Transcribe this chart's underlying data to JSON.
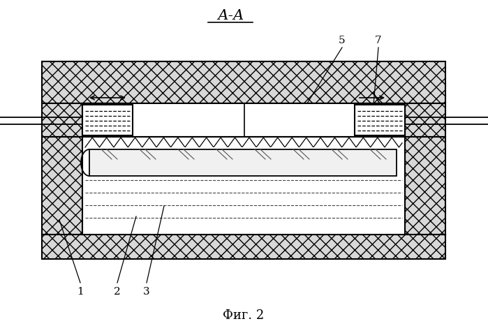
{
  "bg_color": "#ffffff",
  "line_color": "#000000",
  "title": "А-А",
  "fig_label": "Фиг. 2",
  "labels": [
    "1",
    "2",
    "3",
    "5",
    "7"
  ],
  "hatch_fc": "#d8d8d8"
}
